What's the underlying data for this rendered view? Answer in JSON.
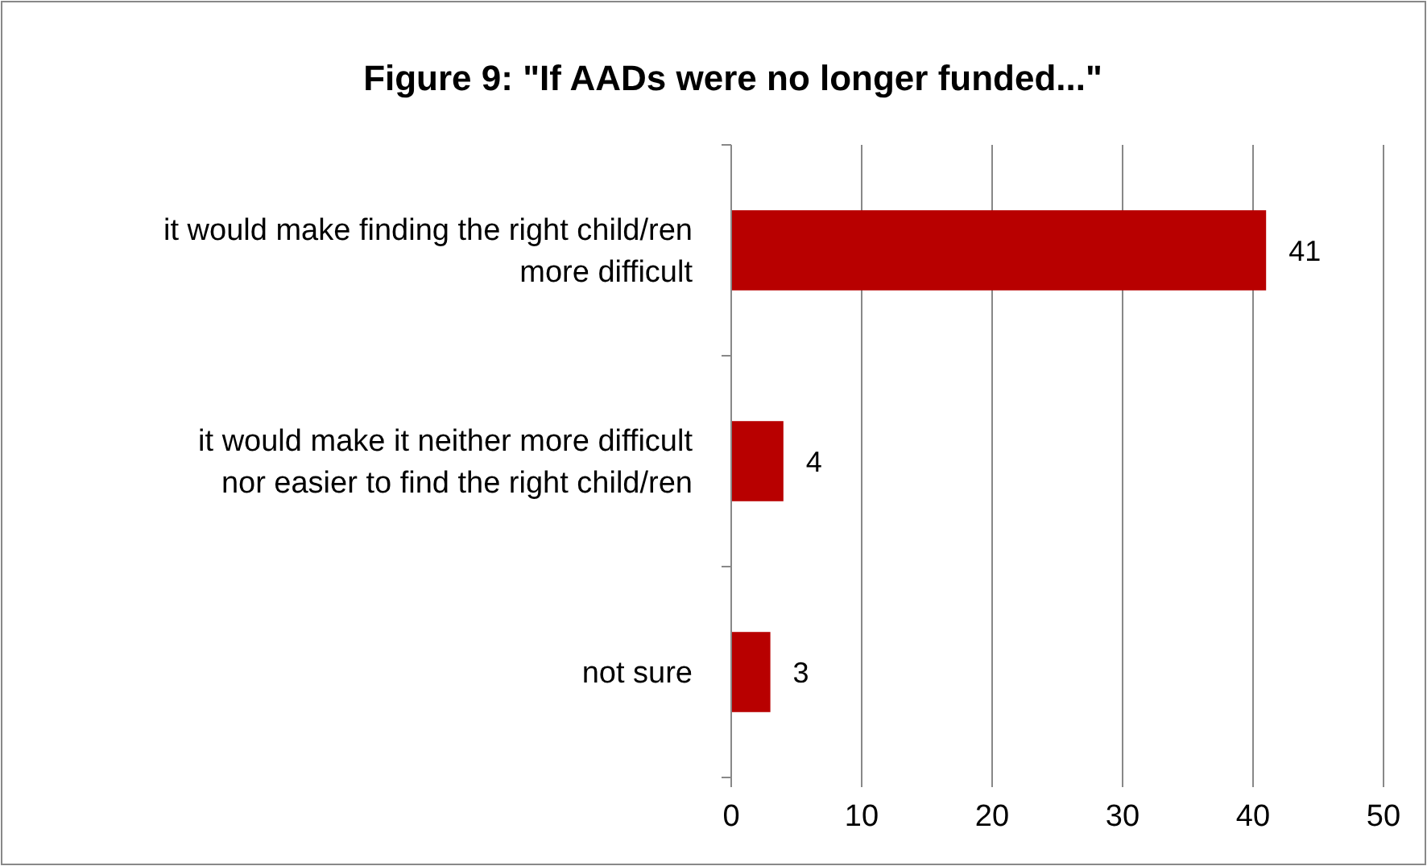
{
  "chart_data": {
    "type": "bar",
    "orientation": "horizontal",
    "title": "Figure 9: \"If AADs were no longer funded...\"",
    "categories": [
      "it would make finding the right child/ren more difficult",
      "it would make it neither more difficult nor easier to find the right child/ren",
      "not sure"
    ],
    "values": [
      41,
      4,
      3
    ],
    "color": "#b80000",
    "xlim": [
      0,
      50
    ],
    "xticks": [
      0,
      10,
      20,
      30,
      40,
      50
    ],
    "grid": "x",
    "data_labels": true
  }
}
